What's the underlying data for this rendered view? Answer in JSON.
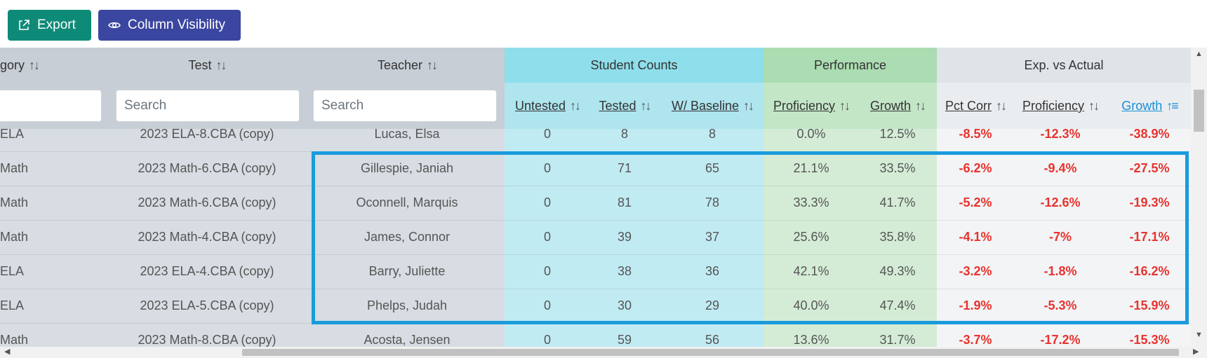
{
  "toolbar": {
    "export_label": "Export",
    "column_visibility_label": "Column Visibility"
  },
  "headers": {
    "category": "gory",
    "test": "Test",
    "teacher": "Teacher",
    "student_counts": "Student Counts",
    "performance": "Performance",
    "exp_vs_actual": "Exp. vs Actual",
    "untested": "Untested",
    "tested": "Tested",
    "w_baseline": "W/ Baseline",
    "perf_proficiency": "Proficiency",
    "perf_growth": "Growth",
    "pct_corr": "Pct Corr",
    "exp_proficiency": "Proficiency",
    "exp_growth": "Growth",
    "sort_glyph": "↑↓",
    "sort_active_glyph": "↑≡"
  },
  "search": {
    "test_placeholder": "Search",
    "teacher_placeholder": "Search"
  },
  "rows": [
    {
      "category": "ELA",
      "test": "2023 ELA-8.CBA (copy)",
      "teacher": "Lucas, Elsa",
      "untested": "0",
      "tested": "8",
      "baseline": "8",
      "proficiency": "0.0%",
      "growth": "12.5%",
      "pct_corr": "-8.5%",
      "exp_proficiency": "-12.3%",
      "exp_growth": "-38.9%"
    },
    {
      "category": "Math",
      "test": "2023 Math-6.CBA (copy)",
      "teacher": "Gillespie, Janiah",
      "untested": "0",
      "tested": "71",
      "baseline": "65",
      "proficiency": "21.1%",
      "growth": "33.5%",
      "pct_corr": "-6.2%",
      "exp_proficiency": "-9.4%",
      "exp_growth": "-27.5%"
    },
    {
      "category": "Math",
      "test": "2023 Math-6.CBA (copy)",
      "teacher": "Oconnell, Marquis",
      "untested": "0",
      "tested": "81",
      "baseline": "78",
      "proficiency": "33.3%",
      "growth": "41.7%",
      "pct_corr": "-5.2%",
      "exp_proficiency": "-12.6%",
      "exp_growth": "-19.3%"
    },
    {
      "category": "Math",
      "test": "2023 Math-4.CBA (copy)",
      "teacher": "James, Connor",
      "untested": "0",
      "tested": "39",
      "baseline": "37",
      "proficiency": "25.6%",
      "growth": "35.8%",
      "pct_corr": "-4.1%",
      "exp_proficiency": "-7%",
      "exp_growth": "-17.1%"
    },
    {
      "category": "ELA",
      "test": "2023 ELA-4.CBA (copy)",
      "teacher": "Barry, Juliette",
      "untested": "0",
      "tested": "38",
      "baseline": "36",
      "proficiency": "42.1%",
      "growth": "49.3%",
      "pct_corr": "-3.2%",
      "exp_proficiency": "-1.8%",
      "exp_growth": "-16.2%"
    },
    {
      "category": "ELA",
      "test": "2023 ELA-5.CBA (copy)",
      "teacher": "Phelps, Judah",
      "untested": "0",
      "tested": "30",
      "baseline": "29",
      "proficiency": "40.0%",
      "growth": "47.4%",
      "pct_corr": "-1.9%",
      "exp_proficiency": "-5.3%",
      "exp_growth": "-15.9%"
    },
    {
      "category": "Math",
      "test": "2023 Math-8.CBA (copy)",
      "teacher": "Acosta, Jensen",
      "untested": "0",
      "tested": "59",
      "baseline": "56",
      "proficiency": "13.6%",
      "growth": "31.7%",
      "pct_corr": "-3.7%",
      "exp_proficiency": "-17.2%",
      "exp_growth": "-15.3%"
    }
  ],
  "colors": {
    "export_button": "#0e8a78",
    "column_visibility_button": "#3b46a0",
    "negative_value": "#e8332e",
    "highlight_border": "#1a9bdc",
    "sort_active": "#1a8fd6"
  }
}
